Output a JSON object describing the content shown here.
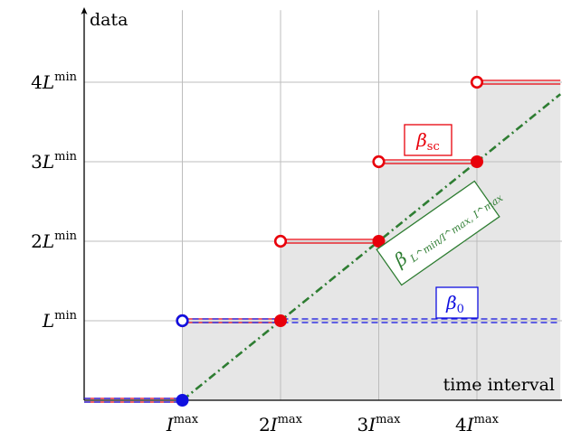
{
  "chart_data": {
    "type": "line",
    "xlabel": "time interval",
    "ylabel": "data",
    "xlim": [
      0,
      4.85
    ],
    "ylim": [
      0,
      4.85
    ],
    "grid": true,
    "x_ticks": [
      {
        "value": 1,
        "coef": "",
        "sym": "I",
        "sup": "max"
      },
      {
        "value": 2,
        "coef": "2",
        "sym": "I",
        "sup": "max"
      },
      {
        "value": 3,
        "coef": "3",
        "sym": "I",
        "sup": "max"
      },
      {
        "value": 4,
        "coef": "4",
        "sym": "I",
        "sup": "max"
      }
    ],
    "y_ticks": [
      {
        "value": 1,
        "coef": "",
        "sym": "L",
        "sup": "min"
      },
      {
        "value": 2,
        "coef": "2",
        "sym": "L",
        "sup": "min"
      },
      {
        "value": 3,
        "coef": "3",
        "sym": "L",
        "sup": "min"
      },
      {
        "value": 4,
        "coef": "4",
        "sym": "L",
        "sup": "min"
      }
    ],
    "series": [
      {
        "label_base": "β",
        "label_sub": "sc",
        "color": "#e8000b",
        "style": "step-double",
        "segments": [
          [
            0,
            1,
            0
          ],
          [
            1,
            2,
            1
          ],
          [
            2,
            3,
            2
          ],
          [
            3,
            4,
            3
          ],
          [
            4,
            4.85,
            4
          ]
        ],
        "open_points": [
          [
            1,
            1
          ],
          [
            2,
            2
          ],
          [
            3,
            3
          ],
          [
            4,
            4
          ]
        ],
        "closed_points": [
          [
            2,
            1
          ],
          [
            3,
            2
          ],
          [
            4,
            3
          ]
        ]
      },
      {
        "label_base": "β",
        "label_sub": "0",
        "color": "#1010e0",
        "style": "dashed-double",
        "segments": [
          [
            0,
            1,
            0
          ],
          [
            1,
            4.85,
            1
          ]
        ],
        "open_points": [
          [
            1,
            1
          ]
        ],
        "closed_points": [
          [
            1,
            0
          ]
        ]
      },
      {
        "label_base": "β",
        "label_sub": "L^min/I^max, I^max",
        "color": "#2e7d32",
        "style": "dash-dot",
        "line": [
          [
            1,
            0
          ],
          [
            4.85,
            3.85
          ]
        ]
      }
    ],
    "shading": {
      "color": "#e6e6e6",
      "under_series": 0
    }
  }
}
